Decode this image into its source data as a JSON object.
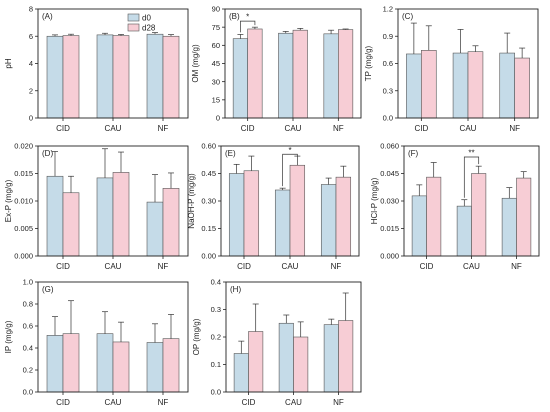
{
  "colors": {
    "d0": "#c5dbe8",
    "d28": "#f7cdd5",
    "edge": "#555555"
  },
  "legend": [
    "d0",
    "d28"
  ],
  "chart_data": [
    {
      "type": "bar",
      "panel_label": "(A)",
      "ylabel": "pH",
      "categories": [
        "CID",
        "CAU",
        "NF"
      ],
      "ylim": [
        0,
        8
      ],
      "yticks": [
        "0",
        "2",
        "4",
        "6",
        "8"
      ],
      "series": [
        {
          "name": "d0",
          "values": [
            6.0,
            6.1,
            6.15
          ],
          "errors": [
            0.1,
            0.12,
            0.12
          ]
        },
        {
          "name": "d28",
          "values": [
            6.05,
            6.05,
            6.0
          ],
          "errors": [
            0.1,
            0.08,
            0.12
          ]
        }
      ],
      "significance": [],
      "legend": true
    },
    {
      "type": "bar",
      "panel_label": "(B)",
      "ylabel": "OM (mg/g)",
      "categories": [
        "CID",
        "CAU",
        "NF"
      ],
      "ylim": [
        0,
        90
      ],
      "yticks": [
        "0",
        "15",
        "30",
        "45",
        "60",
        "75",
        "90"
      ],
      "series": [
        {
          "name": "d0",
          "values": [
            65.5,
            70,
            69.5
          ],
          "errors": [
            3.5,
            1.5,
            3.0
          ]
        },
        {
          "name": "d28",
          "values": [
            73.5,
            72.5,
            73
          ],
          "errors": [
            1.5,
            1.5,
            0.5
          ]
        }
      ],
      "significance": [
        {
          "category": "CID",
          "label": "*",
          "ypos": 80
        }
      ],
      "legend": false
    },
    {
      "type": "bar",
      "panel_label": "(C)",
      "ylabel": "TP (mg/g)",
      "categories": [
        "CID",
        "CAU",
        "NF"
      ],
      "ylim": [
        0,
        1.2
      ],
      "yticks": [
        "0.0",
        "0.3",
        "0.6",
        "0.9",
        "1.2"
      ],
      "series": [
        {
          "name": "d0",
          "values": [
            0.705,
            0.715,
            0.715
          ],
          "errors": [
            0.34,
            0.26,
            0.22
          ]
        },
        {
          "name": "d28",
          "values": [
            0.745,
            0.73,
            0.66
          ],
          "errors": [
            0.27,
            0.065,
            0.11
          ]
        }
      ],
      "significance": [],
      "legend": false
    },
    {
      "type": "bar",
      "panel_label": "(D)",
      "ylabel": "Ex-P (mg/g)",
      "categories": [
        "CID",
        "CAU",
        "NF"
      ],
      "ylim": [
        0,
        0.02
      ],
      "yticks": [
        "0.000",
        "0.005",
        "0.010",
        "0.015",
        "0.020"
      ],
      "series": [
        {
          "name": "d0",
          "values": [
            0.0145,
            0.0142,
            0.0098
          ],
          "errors": [
            0.0045,
            0.0053,
            0.005
          ]
        },
        {
          "name": "d28",
          "values": [
            0.0115,
            0.0152,
            0.0123
          ],
          "errors": [
            0.003,
            0.0037,
            0.0028
          ]
        }
      ],
      "significance": [],
      "legend": false
    },
    {
      "type": "bar",
      "panel_label": "(E)",
      "ylabel": "NaOH-P (mg/g)",
      "categories": [
        "CID",
        "CAU",
        "NF"
      ],
      "ylim": [
        0,
        0.6
      ],
      "yticks": [
        "0.00",
        "0.15",
        "0.30",
        "0.45",
        "0.60"
      ],
      "series": [
        {
          "name": "d0",
          "values": [
            0.45,
            0.36,
            0.39
          ],
          "errors": [
            0.05,
            0.01,
            0.035
          ]
        },
        {
          "name": "d28",
          "values": [
            0.465,
            0.495,
            0.43
          ],
          "errors": [
            0.08,
            0.05,
            0.06
          ]
        }
      ],
      "significance": [
        {
          "category": "CAU",
          "label": "*",
          "ypos": 0.555
        }
      ],
      "legend": false
    },
    {
      "type": "bar",
      "panel_label": "(F)",
      "ylabel": "HCl-P (mg/g)",
      "categories": [
        "CID",
        "CAU",
        "NF"
      ],
      "ylim": [
        0,
        0.06
      ],
      "yticks": [
        "0.000",
        "0.015",
        "0.030",
        "0.045",
        "0.060"
      ],
      "series": [
        {
          "name": "d0",
          "values": [
            0.0328,
            0.0272,
            0.0315
          ],
          "errors": [
            0.006,
            0.0035,
            0.0058
          ]
        },
        {
          "name": "d28",
          "values": [
            0.043,
            0.045,
            0.0425
          ],
          "errors": [
            0.008,
            0.004,
            0.0035
          ]
        }
      ],
      "significance": [
        {
          "category": "CAU",
          "label": "**",
          "ypos": 0.054
        }
      ],
      "legend": false
    },
    {
      "type": "bar",
      "panel_label": "(G)",
      "ylabel": "IP (mg/g)",
      "categories": [
        "CID",
        "CAU",
        "NF"
      ],
      "ylim": [
        0,
        1.0
      ],
      "yticks": [
        "0.0",
        "0.2",
        "0.4",
        "0.6",
        "0.8",
        "1.0"
      ],
      "series": [
        {
          "name": "d0",
          "values": [
            0.515,
            0.53,
            0.45
          ],
          "errors": [
            0.17,
            0.2,
            0.17
          ]
        },
        {
          "name": "d28",
          "values": [
            0.53,
            0.455,
            0.485
          ],
          "errors": [
            0.3,
            0.18,
            0.22
          ]
        }
      ],
      "significance": [],
      "legend": false
    },
    {
      "type": "bar",
      "panel_label": "(H)",
      "ylabel": "OP (mg/g)",
      "categories": [
        "CID",
        "CAU",
        "NF"
      ],
      "ylim": [
        0,
        0.4
      ],
      "yticks": [
        "0.0",
        "0.1",
        "0.2",
        "0.3",
        "0.4"
      ],
      "series": [
        {
          "name": "d0",
          "values": [
            0.14,
            0.25,
            0.245
          ],
          "errors": [
            0.045,
            0.03,
            0.02
          ]
        },
        {
          "name": "d28",
          "values": [
            0.22,
            0.2,
            0.26
          ],
          "errors": [
            0.1,
            0.055,
            0.1
          ]
        }
      ],
      "significance": [],
      "legend": false
    }
  ]
}
